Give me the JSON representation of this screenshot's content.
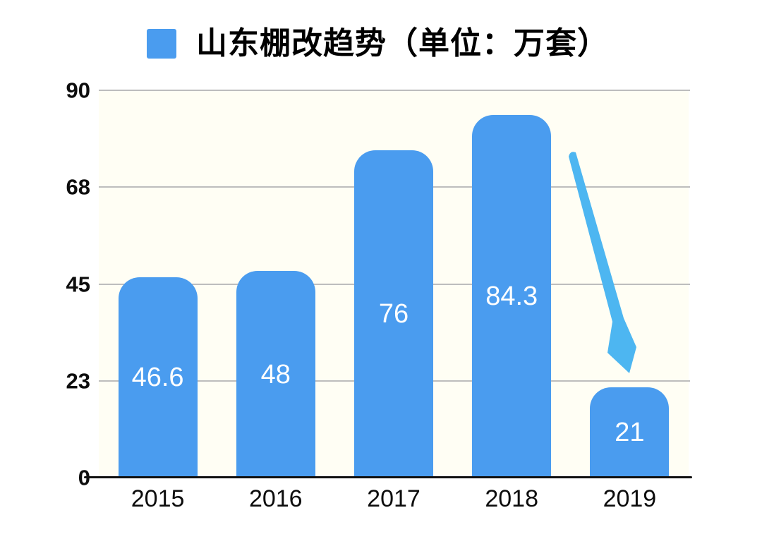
{
  "title": {
    "text": "山东棚改趋势（单位：万套）"
  },
  "colors": {
    "bar": "#4A9CEF",
    "legend": "#4A9CEF",
    "arrow": "#4DB6F1",
    "gridline": "#BDBDBD",
    "axis": "#111111",
    "plot_background": "#FFFEF4",
    "bar_label": "#FFFFFF",
    "tick_text": "#0D0D0D"
  },
  "chart_data": {
    "type": "bar",
    "title": "山东棚改趋势（单位：万套）",
    "categories": [
      "2015",
      "2016",
      "2017",
      "2018",
      "2019"
    ],
    "values": [
      46.6,
      48,
      76,
      84.3,
      21
    ],
    "value_labels": [
      "46.6",
      "48",
      "76",
      "84.3",
      "21"
    ],
    "xlabel": "",
    "ylabel": "",
    "ylim": [
      0,
      90
    ],
    "ytick_labels": [
      "0",
      "23",
      "45",
      "68",
      "90"
    ],
    "grid": true,
    "legend_position": "top-title",
    "value_label_position": "center-of-bar",
    "annotations": [
      {
        "type": "arrow",
        "meaning": "sharp decline toward 2019",
        "from_category": "2018",
        "to_category": "2019",
        "direction": "down"
      }
    ]
  }
}
